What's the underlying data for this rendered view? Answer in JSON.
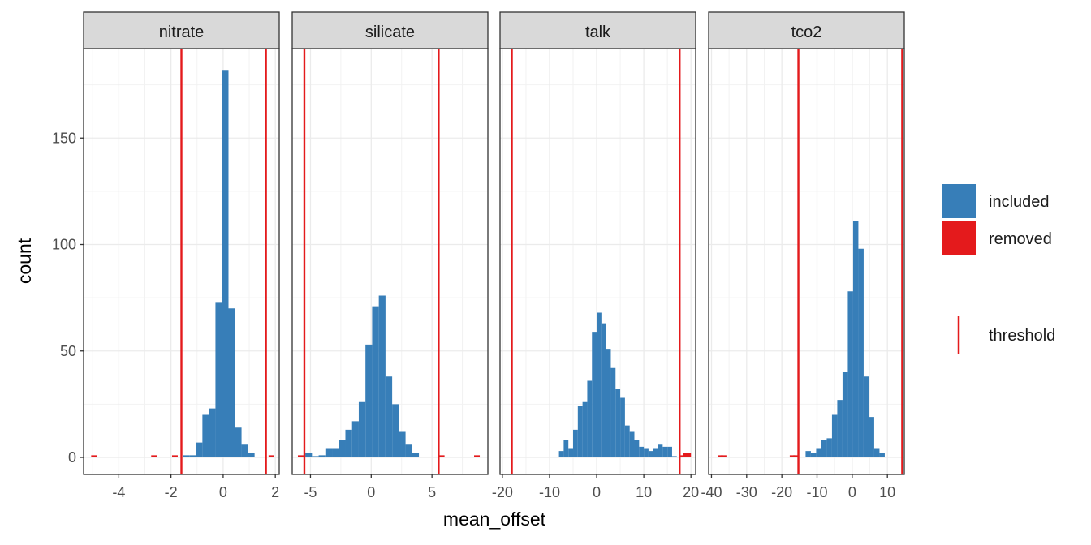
{
  "chart_data": {
    "type": "bar",
    "chart_kind": "faceted histogram",
    "xlabel": "mean_offset",
    "ylabel": "count",
    "y_ticks": [
      0,
      50,
      100,
      150
    ],
    "ylim": [
      -8,
      192
    ],
    "grid": true,
    "legend": {
      "placement": "right",
      "fill_entries": [
        {
          "label": "included",
          "color": "#377EB8"
        },
        {
          "label": "removed",
          "color": "#E41A1C"
        }
      ],
      "line_entries": [
        {
          "label": "threshold",
          "color": "#E41A1C"
        }
      ]
    },
    "facets": [
      {
        "label": "nitrate",
        "xlim": [
          -5.35,
          2.15
        ],
        "x_ticks": [
          -4,
          -2,
          0,
          2
        ],
        "thresholds": [
          -1.6,
          1.64
        ],
        "bar_width": 0.25,
        "included": [
          [
            -1.42,
            1
          ],
          [
            -1.17,
            1
          ],
          [
            -0.92,
            7
          ],
          [
            -0.67,
            20
          ],
          [
            -0.42,
            23
          ],
          [
            -0.17,
            73
          ],
          [
            0.08,
            182
          ],
          [
            0.33,
            70
          ],
          [
            0.58,
            14
          ],
          [
            0.83,
            6
          ],
          [
            1.08,
            2
          ]
        ],
        "removed": [
          [
            -4.95,
            1
          ],
          [
            -2.65,
            1
          ],
          [
            -1.85,
            1
          ],
          [
            1.85,
            1
          ]
        ]
      },
      {
        "label": "silicate",
        "xlim": [
          -6.5,
          9.6
        ],
        "x_ticks": [
          -5,
          0,
          5
        ],
        "thresholds": [
          -5.5,
          5.55
        ],
        "bar_width": 0.55,
        "included": [
          [
            -5.15,
            2
          ],
          [
            -4.6,
            0
          ],
          [
            -4.05,
            1
          ],
          [
            -3.5,
            4
          ],
          [
            -2.95,
            4
          ],
          [
            -2.4,
            8
          ],
          [
            -1.85,
            13
          ],
          [
            -1.3,
            17
          ],
          [
            -0.75,
            26
          ],
          [
            -0.2,
            53
          ],
          [
            0.35,
            71
          ],
          [
            0.9,
            76
          ],
          [
            1.45,
            38
          ],
          [
            2.0,
            25
          ],
          [
            2.55,
            12
          ],
          [
            3.1,
            6
          ],
          [
            3.65,
            2
          ]
        ],
        "removed": [
          [
            -5.8,
            1
          ],
          [
            5.8,
            1
          ],
          [
            8.7,
            1
          ]
        ]
      },
      {
        "label": "talk",
        "xlim": [
          -20.5,
          21.0
        ],
        "x_ticks": [
          -20,
          -10,
          0,
          10,
          20
        ],
        "thresholds": [
          -18.0,
          17.6
        ],
        "bar_width": 1.0,
        "included": [
          [
            -7.5,
            3
          ],
          [
            -6.5,
            8
          ],
          [
            -5.5,
            4
          ],
          [
            -4.5,
            13
          ],
          [
            -3.5,
            24
          ],
          [
            -2.5,
            26
          ],
          [
            -1.5,
            36
          ],
          [
            -0.5,
            59
          ],
          [
            0.5,
            68
          ],
          [
            1.5,
            63
          ],
          [
            2.5,
            51
          ],
          [
            3.5,
            42
          ],
          [
            4.5,
            32
          ],
          [
            5.5,
            28
          ],
          [
            6.5,
            15
          ],
          [
            7.5,
            12
          ],
          [
            8.5,
            8
          ],
          [
            9.5,
            5
          ],
          [
            10.5,
            4
          ],
          [
            11.5,
            3
          ],
          [
            12.5,
            4
          ],
          [
            13.5,
            6
          ],
          [
            14.5,
            5
          ],
          [
            15.5,
            5
          ],
          [
            16.5,
            0
          ]
        ],
        "removed": [
          [
            18.3,
            1
          ],
          [
            18.9,
            2
          ],
          [
            19.5,
            2
          ]
        ]
      },
      {
        "label": "tco2",
        "xlim": [
          -40.8,
          14.8
        ],
        "x_ticks": [
          -40,
          -30,
          -20,
          -10,
          0,
          10
        ],
        "thresholds": [
          -15.3,
          14.2
        ],
        "bar_width": 1.5,
        "included": [
          [
            -12.5,
            3
          ],
          [
            -11.0,
            2
          ],
          [
            -9.5,
            4
          ],
          [
            -8.0,
            8
          ],
          [
            -6.5,
            9
          ],
          [
            -5.0,
            20
          ],
          [
            -3.5,
            27
          ],
          [
            -2.0,
            40
          ],
          [
            -0.5,
            78
          ],
          [
            1.0,
            111
          ],
          [
            2.5,
            98
          ],
          [
            4.0,
            38
          ],
          [
            5.5,
            19
          ],
          [
            7.0,
            4
          ],
          [
            8.5,
            2
          ]
        ],
        "removed": [
          [
            -37.5,
            1
          ],
          [
            -36.5,
            1
          ],
          [
            -17.0,
            1
          ],
          [
            -16.0,
            1
          ]
        ]
      }
    ]
  }
}
